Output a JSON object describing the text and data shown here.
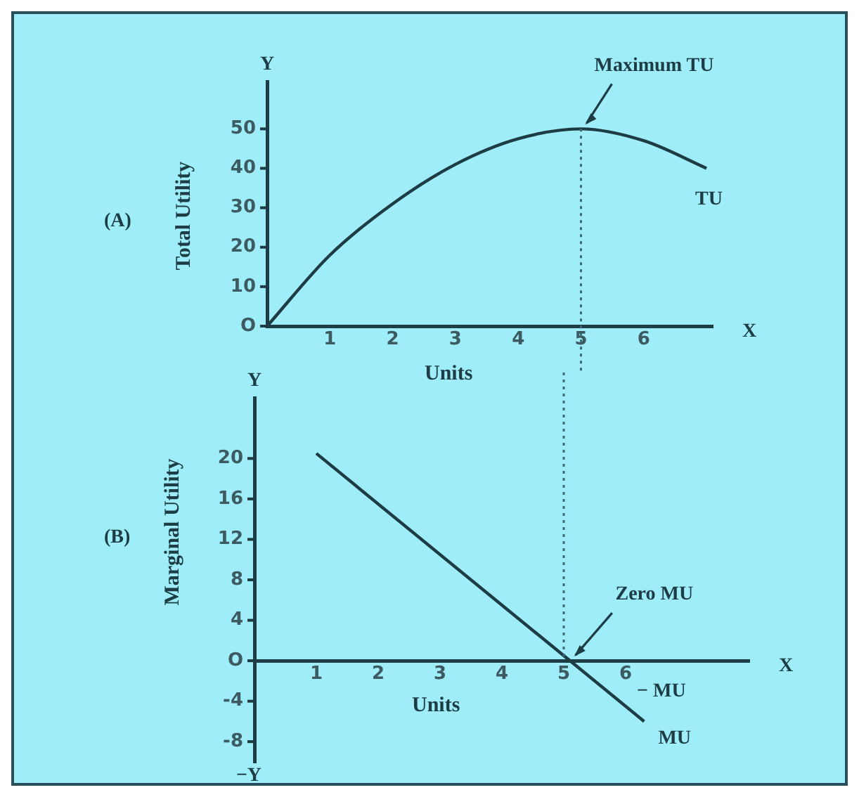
{
  "chart_data": [
    {
      "type": "line",
      "title": "(A)",
      "xlabel": "Units",
      "ylabel": "Total Utility",
      "series": [
        {
          "name": "TU",
          "color": "#1d3c44",
          "x": [
            0,
            1,
            2,
            3,
            4,
            5,
            6,
            7
          ],
          "values": [
            0,
            18,
            31,
            41,
            47.5,
            50,
            47,
            40
          ]
        }
      ],
      "xlim": [
        0,
        7.1
      ],
      "xticks": [
        1,
        2,
        3,
        4,
        5,
        6
      ],
      "ylim": [
        0,
        62
      ],
      "yticks": [
        {
          "value": 0,
          "label": "O"
        },
        10,
        20,
        30,
        40,
        50
      ],
      "ref_lines": [
        {
          "axis": "x",
          "value": 5,
          "label": null,
          "color": "#3a6a74",
          "line_style": "dotted"
        }
      ],
      "annotations": [
        "Y",
        "X",
        {
          "text": "Maximum TU",
          "x": 5,
          "y": 50
        }
      ],
      "grid": false,
      "legend": false,
      "marker": "none",
      "line_style": "solid"
    },
    {
      "type": "line",
      "title": "(B)",
      "xlabel": "Units",
      "ylabel": "Marginal Utility",
      "series": [
        {
          "name": "MU",
          "color": "#1d3c44",
          "x": [
            1,
            6.3
          ],
          "values": [
            20.5,
            -6
          ]
        }
      ],
      "xlim": [
        0,
        8
      ],
      "xticks": [
        1,
        2,
        3,
        4,
        5,
        6
      ],
      "ylim": [
        -10,
        26
      ],
      "yticks": [
        -8,
        -4,
        {
          "value": 0,
          "label": "O"
        },
        4,
        8,
        12,
        16,
        20
      ],
      "ref_lines": [
        {
          "axis": "x",
          "value": 5,
          "label": null,
          "color": "#3a6a74",
          "line_style": "dotted"
        }
      ],
      "annotations": [
        "Y",
        "−Y",
        "X",
        "− MU",
        {
          "text": "Zero MU",
          "x": 5.1,
          "y": 0
        }
      ],
      "grid": false,
      "legend": false,
      "marker": "none",
      "line_style": "solid"
    }
  ]
}
